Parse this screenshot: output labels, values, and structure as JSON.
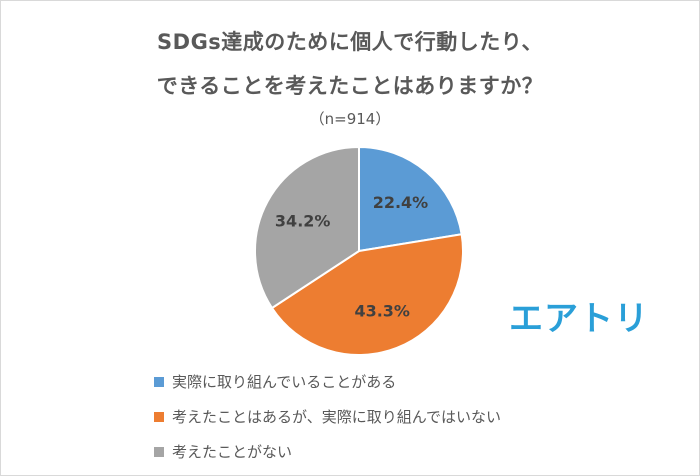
{
  "chart_data": {
    "type": "pie",
    "title": "SDGs達成のために個人で行動したり、",
    "title_line2": "できることを考えたことはありますか？",
    "subtitle": "（n=914）",
    "slices": [
      {
        "name": "実際に取り組んでいることがある",
        "value": 22.4,
        "label": "22.4%",
        "color": "#5b9bd5"
      },
      {
        "name": "考えたことはあるが、実際に取り組んではいない",
        "value": 43.3,
        "label": "43.3%",
        "color": "#ed7d31"
      },
      {
        "name": "考えたことがない",
        "value": 34.2,
        "label": "34.2%",
        "color": "#a5a5a5"
      }
    ],
    "legend_position": "bottom-left"
  },
  "brand": {
    "logo_text": "エアトリ",
    "color": "#2a9fd8"
  }
}
